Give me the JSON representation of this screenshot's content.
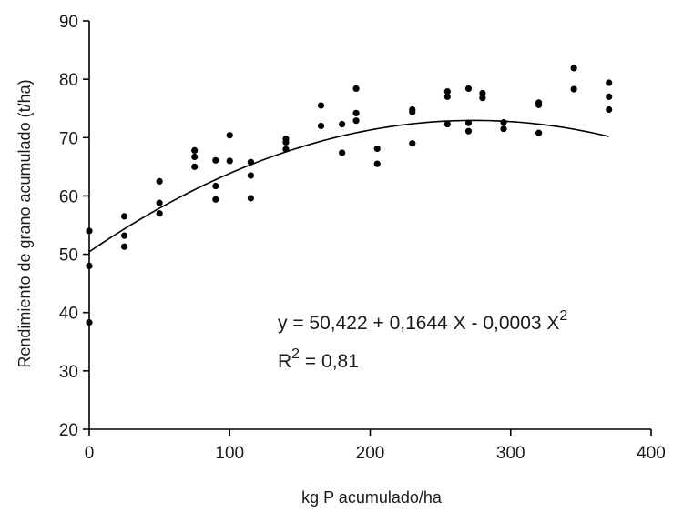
{
  "chart_data": {
    "type": "scatter",
    "xlabel": "kg P acumulado/ha",
    "ylabel": "Rendimiento de grano acumulado (t/ha)",
    "xlim": [
      0,
      400
    ],
    "ylim": [
      20,
      90
    ],
    "xticks": [
      0,
      100,
      200,
      300,
      400
    ],
    "yticks": [
      20,
      30,
      40,
      50,
      60,
      70,
      80,
      90
    ],
    "grid": false,
    "points": [
      {
        "x": 0,
        "y": 54.0
      },
      {
        "x": 0,
        "y": 48.0
      },
      {
        "x": 0,
        "y": 38.3
      },
      {
        "x": 25,
        "y": 56.5
      },
      {
        "x": 25,
        "y": 53.2
      },
      {
        "x": 25,
        "y": 51.3
      },
      {
        "x": 50,
        "y": 62.5
      },
      {
        "x": 50,
        "y": 58.8
      },
      {
        "x": 50,
        "y": 57.0
      },
      {
        "x": 75,
        "y": 67.8
      },
      {
        "x": 75,
        "y": 66.7
      },
      {
        "x": 75,
        "y": 65.0
      },
      {
        "x": 90,
        "y": 66.1
      },
      {
        "x": 90,
        "y": 61.7
      },
      {
        "x": 90,
        "y": 59.4
      },
      {
        "x": 100,
        "y": 70.4
      },
      {
        "x": 100,
        "y": 66.0
      },
      {
        "x": 115,
        "y": 65.8
      },
      {
        "x": 115,
        "y": 63.5
      },
      {
        "x": 115,
        "y": 59.6
      },
      {
        "x": 140,
        "y": 69.8
      },
      {
        "x": 140,
        "y": 69.2
      },
      {
        "x": 140,
        "y": 68.0
      },
      {
        "x": 165,
        "y": 75.5
      },
      {
        "x": 165,
        "y": 72.0
      },
      {
        "x": 180,
        "y": 72.3
      },
      {
        "x": 180,
        "y": 67.4
      },
      {
        "x": 190,
        "y": 78.4
      },
      {
        "x": 190,
        "y": 74.2
      },
      {
        "x": 190,
        "y": 72.9
      },
      {
        "x": 205,
        "y": 68.1
      },
      {
        "x": 205,
        "y": 65.5
      },
      {
        "x": 230,
        "y": 74.8
      },
      {
        "x": 230,
        "y": 74.4
      },
      {
        "x": 230,
        "y": 69.0
      },
      {
        "x": 255,
        "y": 77.9
      },
      {
        "x": 255,
        "y": 77.0
      },
      {
        "x": 255,
        "y": 72.3
      },
      {
        "x": 270,
        "y": 78.4
      },
      {
        "x": 270,
        "y": 72.5
      },
      {
        "x": 270,
        "y": 71.1
      },
      {
        "x": 280,
        "y": 77.6
      },
      {
        "x": 280,
        "y": 76.8
      },
      {
        "x": 295,
        "y": 72.6
      },
      {
        "x": 295,
        "y": 71.5
      },
      {
        "x": 320,
        "y": 76.0
      },
      {
        "x": 320,
        "y": 75.6
      },
      {
        "x": 320,
        "y": 70.8
      },
      {
        "x": 345,
        "y": 81.9
      },
      {
        "x": 345,
        "y": 78.3
      },
      {
        "x": 370,
        "y": 79.4
      },
      {
        "x": 370,
        "y": 77.0
      },
      {
        "x": 370,
        "y": 74.8
      }
    ],
    "fit": {
      "type": "polynomial",
      "coefficients": [
        50.422,
        0.1644,
        -0.0003
      ],
      "x_range": [
        0,
        370
      ]
    },
    "annotations": {
      "equation_main": "y = 50,422 + 0,1644 X - 0,0003 X",
      "equation_exponent": "2",
      "r2_base": "R",
      "r2_exponent": "2",
      "r2_value": " = 0,81"
    }
  }
}
